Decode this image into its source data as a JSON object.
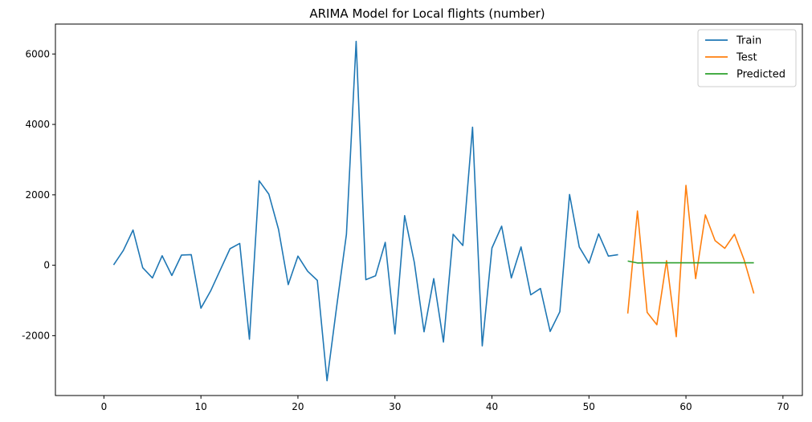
{
  "chart_data": {
    "type": "line",
    "title": "ARIMA Model for Local flights (number)",
    "xlabel": "",
    "ylabel": "",
    "xlim": [
      -5,
      72
    ],
    "ylim": [
      -3700,
      6850
    ],
    "x_ticks": [
      0,
      10,
      20,
      30,
      40,
      50,
      60,
      70
    ],
    "y_ticks": [
      -2000,
      0,
      2000,
      4000,
      6000
    ],
    "grid": false,
    "legend_position": "top-right",
    "series": [
      {
        "name": "Train",
        "color": "#1f77b4",
        "x": [
          1,
          2,
          3,
          4,
          5,
          6,
          7,
          8,
          9,
          10,
          11,
          12,
          13,
          14,
          15,
          16,
          17,
          18,
          19,
          20,
          21,
          22,
          23,
          24,
          25,
          26,
          27,
          28,
          29,
          30,
          31,
          32,
          33,
          34,
          35,
          36,
          37,
          38,
          39,
          40,
          41,
          42,
          43,
          44,
          45,
          46,
          47,
          48,
          49,
          50,
          51,
          52,
          53
        ],
        "values": [
          10,
          420,
          1000,
          -70,
          -360,
          270,
          -290,
          290,
          300,
          -1220,
          -730,
          -130,
          470,
          620,
          -2100,
          2400,
          2020,
          1020,
          -550,
          260,
          -170,
          -430,
          -3280,
          -1160,
          880,
          6360,
          -410,
          -300,
          650,
          -1950,
          1410,
          80,
          -1890,
          -380,
          -2180,
          880,
          560,
          3920,
          -2290,
          490,
          1110,
          -360,
          520,
          -840,
          -660,
          -1880,
          -1320,
          2010,
          520,
          60,
          890,
          260,
          300
        ]
      },
      {
        "name": "Test",
        "color": "#ff7f0e",
        "x": [
          54,
          55,
          56,
          57,
          58,
          59,
          60,
          61,
          62,
          63,
          64,
          65,
          66,
          67
        ],
        "values": [
          -1370,
          1540,
          -1340,
          -1690,
          130,
          -2030,
          2270,
          -380,
          1430,
          700,
          480,
          880,
          150,
          -800
        ]
      },
      {
        "name": "Predicted",
        "color": "#2ca02c",
        "x": [
          54,
          55,
          56,
          57,
          58,
          59,
          60,
          61,
          62,
          63,
          64,
          65,
          66,
          67
        ],
        "values": [
          120,
          65,
          70,
          70,
          70,
          70,
          70,
          70,
          70,
          70,
          70,
          70,
          70,
          70
        ]
      }
    ]
  }
}
